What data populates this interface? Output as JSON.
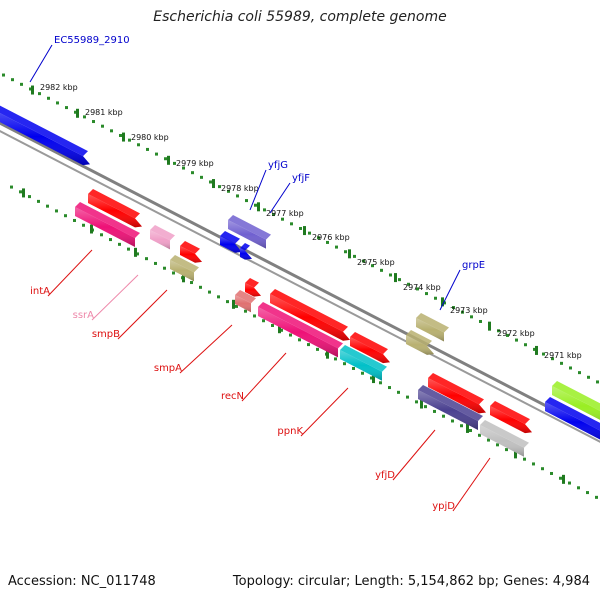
{
  "title": "Escherichia coli 55989, complete genome",
  "footer": {
    "accession": "Accession: NC_011748",
    "stats": "Topology: circular; Length: 5,154,862 bp; Genes: 4,984"
  },
  "colors": {
    "background": "#ffffff",
    "backbone": "#808080",
    "tick_dots": "#2a8a2a",
    "label_forward": "#0000cc",
    "label_reverse": "#dd1111",
    "label_rna": "#ee88aa"
  },
  "ticks": [
    "2982 kbp",
    "2981 kbp",
    "2980 kbp",
    "2979 kbp",
    "2978 kbp",
    "2977 kbp",
    "2976 kbp",
    "2975 kbp",
    "2974 kbp",
    "2973 kbp",
    "2972 kbp",
    "2971 kbp"
  ],
  "genes": [
    {
      "name": "EC55989_2910",
      "strand": "forward",
      "color": "#0000ee"
    },
    {
      "name": "yfjG",
      "strand": "forward",
      "color": "#7060d0"
    },
    {
      "name": "yfjF",
      "strand": "forward",
      "color": "#0000ee"
    },
    {
      "name": "grpE",
      "strand": "forward",
      "color": "#b8b070"
    },
    {
      "name": "intA",
      "strand": "reverse",
      "color": "#ee1177"
    },
    {
      "name": "ssrA",
      "strand": "reverse",
      "color": "#f0a0c8"
    },
    {
      "name": "smpB",
      "strand": "reverse",
      "color": "#b8b070"
    },
    {
      "name": "smpA",
      "strand": "reverse",
      "color": "#e07070"
    },
    {
      "name": "recN",
      "strand": "reverse",
      "color": "#ee1177"
    },
    {
      "name": "ppnK",
      "strand": "reverse",
      "color": "#00c0c8"
    },
    {
      "name": "yfjD",
      "strand": "reverse",
      "color": "#4a4090"
    },
    {
      "name": "ypjD",
      "strand": "reverse",
      "color": "#c0c0c0"
    }
  ]
}
